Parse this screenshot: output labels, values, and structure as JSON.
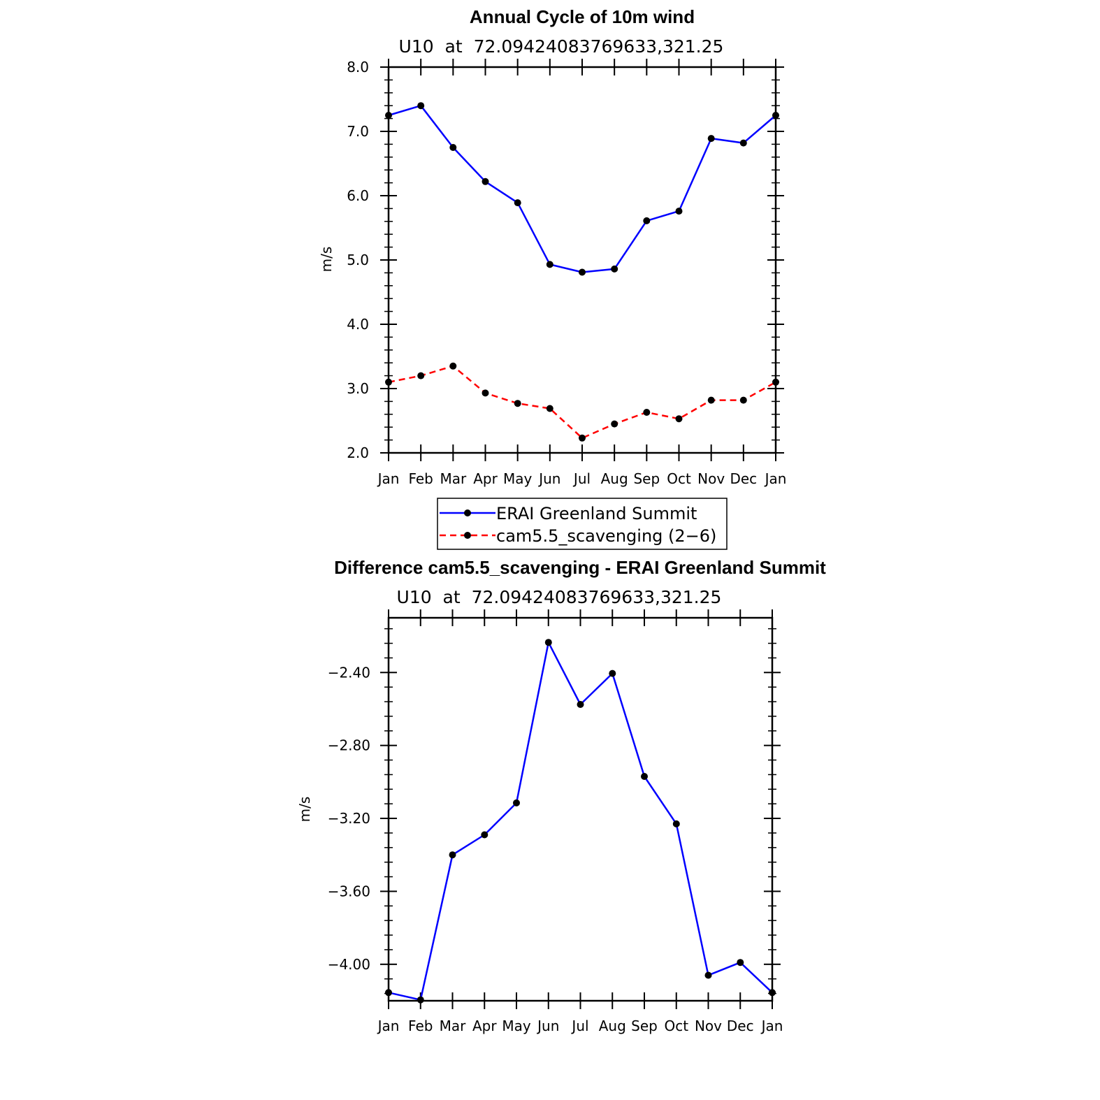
{
  "chart_data": [
    {
      "type": "line",
      "title": "Annual Cycle of 10m wind",
      "subtitle": "U10  at  72.09424083769633,321.25",
      "xlabel": "",
      "ylabel": "m/s",
      "categories": [
        "Jan",
        "Feb",
        "Mar",
        "Apr",
        "May",
        "Jun",
        "Jul",
        "Aug",
        "Sep",
        "Oct",
        "Nov",
        "Dec",
        "Jan"
      ],
      "ylim": [
        2.0,
        8.0
      ],
      "yticks": [
        2.0,
        3.0,
        4.0,
        5.0,
        6.0,
        7.0,
        8.0
      ],
      "ytick_labels": [
        "2.0",
        "3.0",
        "4.0",
        "5.0",
        "6.0",
        "7.0",
        "8.0"
      ],
      "series": [
        {
          "name": "ERAI Greenland Summit",
          "color": "#0000ff",
          "dashed": false,
          "values": [
            7.25,
            7.4,
            6.75,
            6.22,
            5.89,
            4.93,
            4.81,
            4.86,
            5.61,
            5.76,
            6.89,
            6.82,
            7.25
          ]
        },
        {
          "name": "cam5.5_scavenging (2-6)",
          "color": "#ff0000",
          "dashed": true,
          "values": [
            3.1,
            3.2,
            3.35,
            2.93,
            2.77,
            2.69,
            2.23,
            2.45,
            2.63,
            2.53,
            2.82,
            2.82,
            3.1
          ]
        }
      ],
      "legend": {
        "position": "bottom-center",
        "entries": [
          "ERAI Greenland Summit",
          "cam5.5_scavenging (2−6)"
        ]
      }
    },
    {
      "type": "line",
      "title": "Difference cam5.5_scavenging - ERAI Greenland Summit",
      "subtitle": "U10  at  72.09424083769633,321.25",
      "xlabel": "",
      "ylabel": "m/s",
      "categories": [
        "Jan",
        "Feb",
        "Mar",
        "Apr",
        "May",
        "Jun",
        "Jul",
        "Aug",
        "Sep",
        "Oct",
        "Nov",
        "Dec",
        "Jan"
      ],
      "ylim": [
        -4.2,
        -2.1
      ],
      "yticks": [
        -4.0,
        -3.6,
        -3.2,
        -2.8,
        -2.4
      ],
      "ytick_labels": [
        "−4.00",
        "−3.60",
        "−3.20",
        "−2.80",
        "−2.40"
      ],
      "series": [
        {
          "name": "Difference",
          "color": "#0000ff",
          "dashed": false,
          "values": [
            -4.155,
            -4.195,
            -3.4,
            -3.29,
            -3.115,
            -2.235,
            -2.575,
            -2.405,
            -2.97,
            -3.23,
            -4.06,
            -3.99,
            -4.155
          ]
        }
      ]
    }
  ]
}
